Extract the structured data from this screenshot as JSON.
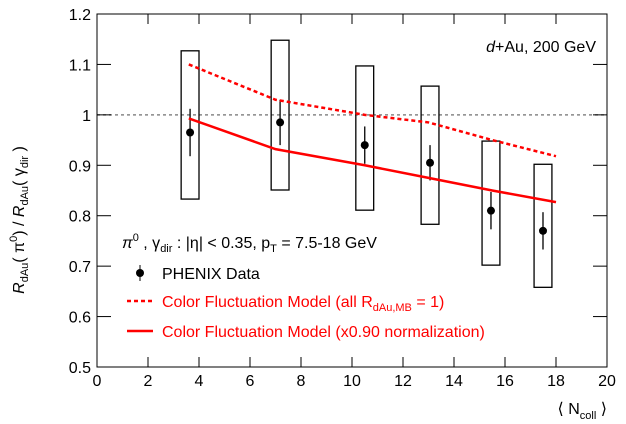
{
  "chart_data": {
    "type": "scatter",
    "annotation": [
      "d",
      "+Au, 200 GeV"
    ],
    "y_label": [
      "R",
      "dAu",
      "( π",
      "0",
      ") / ",
      "R",
      "dAu",
      "( γ",
      "dir",
      " )"
    ],
    "x_label": [
      "⟨ N",
      "coll",
      " ⟩"
    ],
    "legend_header": [
      "π",
      "0",
      " , γ",
      "dir",
      " : |η| < 0.35, p",
      "T",
      " = 7.5-18 GeV"
    ],
    "xlim": [
      0,
      20
    ],
    "ylim": [
      0.5,
      1.2
    ],
    "xticks": [
      0,
      2,
      4,
      6,
      8,
      10,
      12,
      14,
      16,
      18,
      20
    ],
    "yticks": [
      0.5,
      0.6,
      0.7,
      0.8,
      0.9,
      1,
      1.1,
      1.2
    ],
    "reference_line": 1,
    "reference_color": "#888888",
    "series": [
      {
        "name": [
          "PHENIX Data"
        ],
        "style": "points",
        "color": "#000000",
        "x": [
          3.65,
          7.18,
          10.5,
          13.06,
          15.45,
          17.49
        ],
        "values": [
          0.965,
          0.985,
          0.94,
          0.905,
          0.81,
          0.77
        ],
        "errors": [
          0.047,
          0.045,
          0.037,
          0.035,
          0.037,
          0.037
        ],
        "sys_high": [
          1.127,
          1.148,
          1.097,
          1.057,
          0.948,
          0.902
        ],
        "sys_low": [
          0.833,
          0.851,
          0.811,
          0.783,
          0.702,
          0.658
        ]
      },
      {
        "name": [
          "Color Fluctuation Model (all R",
          "dAu,MB",
          " = 1)"
        ],
        "style": "dashed",
        "color": "#ff0000",
        "x": [
          3.6,
          7,
          10.5,
          13,
          15.5,
          18
        ],
        "values": [
          1.1,
          1.03,
          1.0,
          0.985,
          0.95,
          0.918
        ]
      },
      {
        "name": [
          "Color Fluctuation Model (x0.90 normalization)"
        ],
        "style": "solid",
        "color": "#ff0000",
        "x": [
          3.6,
          7,
          10.5,
          13,
          15.5,
          18
        ],
        "values": [
          0.993,
          0.932,
          0.9,
          0.875,
          0.85,
          0.827
        ]
      }
    ]
  }
}
